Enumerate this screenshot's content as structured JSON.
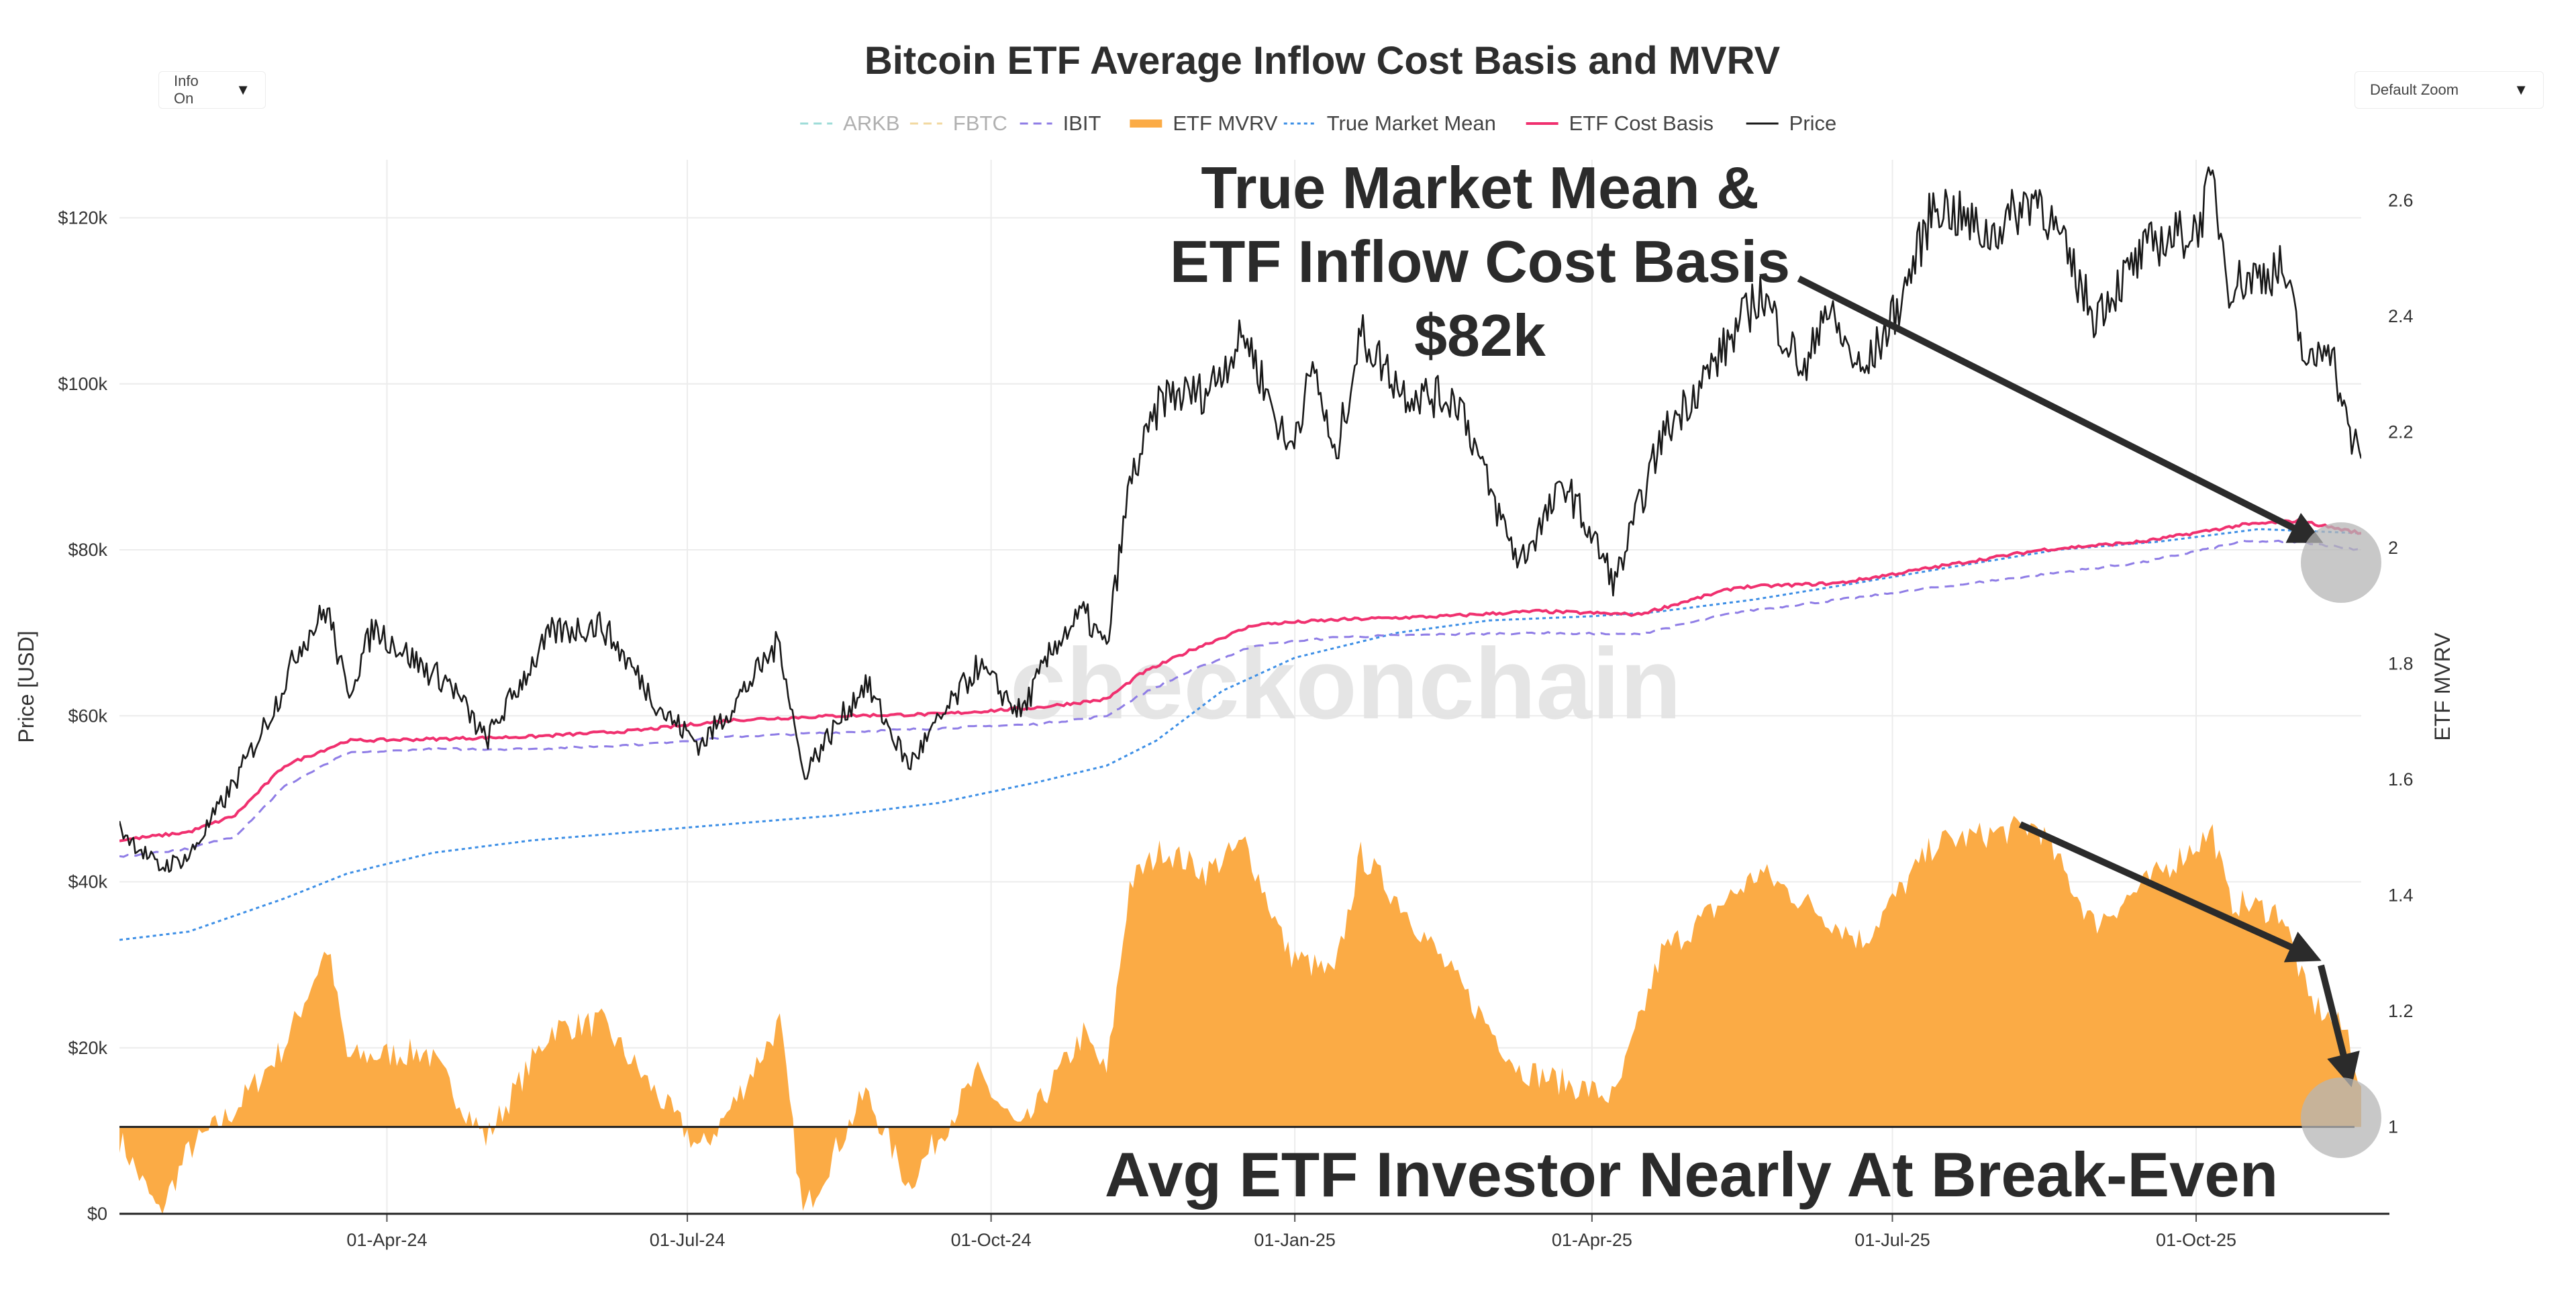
{
  "controls": {
    "info": "Info On",
    "zoom": "Default Zoom",
    "caret": "▼"
  },
  "colors": {
    "price": "#1a1a1a",
    "etf_cost_basis": "#f0306f",
    "true_market_mean": "#3d8fe6",
    "ibit": "#8f7de6",
    "fbtc": "#f2d9a0",
    "arkb": "#9edcd8",
    "mvrv_fill": "#fbab45",
    "grid": "#ececec",
    "arrow": "#2b2b2b",
    "marker": "#b5b5b5"
  },
  "annotations": {
    "top_line1": "True Market Mean &",
    "top_line2": "ETF Inflow Cost Basis",
    "top_line3": "$82k",
    "bottom": "Avg ETF Investor Nearly At Break-Even",
    "watermark": "checkonchain"
  },
  "chart_data": {
    "type": "line",
    "title": "Bitcoin ETF Average Inflow Cost Basis and MVRV",
    "xlabel": "",
    "ylabel": "Price [USD]",
    "y2label": "ETF MVRV",
    "x_range": [
      "2024-01-11",
      "2025-11-20"
    ],
    "x_ticks": [
      "01-Apr-24",
      "01-Jul-24",
      "01-Oct-24",
      "01-Jan-25",
      "01-Apr-25",
      "01-Jul-25",
      "01-Oct-25"
    ],
    "ylim": [
      0,
      127000
    ],
    "y_ticks": [
      "$0",
      "$20k",
      "$40k",
      "$60k",
      "$80k",
      "$100k",
      "$120k"
    ],
    "y2lim": [
      0.85,
      2.67
    ],
    "y2_ticks": [
      "1",
      "1.2",
      "1.4",
      "1.6",
      "1.8",
      "2",
      "2.2",
      "2.4",
      "2.6"
    ],
    "legend": [
      "ARKB",
      "FBTC",
      "IBIT",
      "ETF MVRV",
      "True Market Mean",
      "ETF Cost Basis",
      "Price"
    ],
    "series": [
      {
        "name": "Price",
        "axis": "y",
        "x": [
          "2024-01-11",
          "2024-01-23",
          "2024-02-01",
          "2024-02-15",
          "2024-02-28",
          "2024-03-05",
          "2024-03-14",
          "2024-03-20",
          "2024-03-28",
          "2024-04-13",
          "2024-04-20",
          "2024-05-01",
          "2024-05-15",
          "2024-05-21",
          "2024-06-05",
          "2024-06-24",
          "2024-07-05",
          "2024-07-14",
          "2024-07-29",
          "2024-08-05",
          "2024-08-24",
          "2024-09-06",
          "2024-09-27",
          "2024-10-10",
          "2024-10-21",
          "2024-10-29",
          "2024-11-05",
          "2024-11-12",
          "2024-11-22",
          "2024-12-05",
          "2024-12-17",
          "2024-12-30",
          "2025-01-07",
          "2025-01-13",
          "2025-01-21",
          "2025-02-03",
          "2025-02-20",
          "2025-03-02",
          "2025-03-10",
          "2025-03-24",
          "2025-04-08",
          "2025-04-22",
          "2025-05-09",
          "2025-05-22",
          "2025-06-05",
          "2025-06-10",
          "2025-06-22",
          "2025-07-03",
          "2025-07-14",
          "2025-07-30",
          "2025-08-14",
          "2025-08-31",
          "2025-09-18",
          "2025-10-01",
          "2025-10-06",
          "2025-10-11",
          "2025-10-27",
          "2025-11-04",
          "2025-11-10",
          "2025-11-16",
          "2025-11-20"
        ],
        "values": [
          46500,
          41700,
          43000,
          52000,
          62000,
          68000,
          73000,
          62500,
          70700,
          65500,
          64000,
          57000,
          66300,
          70000,
          71000,
          60300,
          56500,
          60800,
          69000,
          53000,
          64000,
          54000,
          66000,
          60300,
          69000,
          72400,
          68000,
          88000,
          98500,
          99000,
          106000,
          92000,
          102000,
          90500,
          106000,
          99000,
          98000,
          86000,
          78500,
          88000,
          76000,
          93500,
          103000,
          111000,
          101000,
          109600,
          101000,
          109500,
          122000,
          117800,
          123000,
          108300,
          117000,
          118500,
          124500,
          112000,
          114000,
          101500,
          106000,
          94300,
          91000
        ]
      },
      {
        "name": "ETF Cost Basis",
        "axis": "y",
        "x": [
          "2024-01-11",
          "2024-02-01",
          "2024-02-15",
          "2024-03-01",
          "2024-03-20",
          "2024-04-15",
          "2024-05-15",
          "2024-06-15",
          "2024-07-15",
          "2024-08-15",
          "2024-09-15",
          "2024-10-15",
          "2024-11-05",
          "2024-11-15",
          "2024-12-01",
          "2024-12-20",
          "2025-01-15",
          "2025-02-15",
          "2025-03-15",
          "2025-04-15",
          "2025-05-15",
          "2025-06-15",
          "2025-07-15",
          "2025-08-15",
          "2025-09-15",
          "2025-10-15",
          "2025-11-01",
          "2025-11-20"
        ],
        "values": [
          45000,
          46000,
          48000,
          54000,
          57000,
          57200,
          57500,
          58200,
          59500,
          60000,
          60200,
          61000,
          62000,
          65000,
          68000,
          71000,
          71600,
          72000,
          72600,
          72200,
          75500,
          76000,
          78000,
          80000,
          81000,
          83000,
          83500,
          82000
        ]
      },
      {
        "name": "IBIT",
        "axis": "y",
        "x": [
          "2024-01-11",
          "2024-02-01",
          "2024-02-15",
          "2024-03-01",
          "2024-03-20",
          "2024-04-15",
          "2024-05-15",
          "2024-06-15",
          "2024-07-15",
          "2024-08-15",
          "2024-09-15",
          "2024-10-15",
          "2024-11-05",
          "2024-11-15",
          "2024-12-01",
          "2024-12-20",
          "2025-01-15",
          "2025-02-15",
          "2025-03-15",
          "2025-04-15",
          "2025-05-15",
          "2025-06-15",
          "2025-07-15",
          "2025-08-15",
          "2025-09-15",
          "2025-10-15",
          "2025-11-01",
          "2025-11-20"
        ],
        "values": [
          43000,
          44000,
          45500,
          51500,
          55500,
          56000,
          56000,
          56500,
          57500,
          58000,
          58500,
          59000,
          60000,
          62500,
          65500,
          68500,
          69500,
          69800,
          70000,
          69800,
          72500,
          74000,
          75500,
          77000,
          78500,
          81000,
          81000,
          80000
        ]
      },
      {
        "name": "True Market Mean",
        "axis": "y",
        "x": [
          "2024-01-11",
          "2024-02-01",
          "2024-03-01",
          "2024-03-20",
          "2024-04-15",
          "2024-05-15",
          "2024-06-15",
          "2024-07-15",
          "2024-08-15",
          "2024-09-15",
          "2024-10-15",
          "2024-11-05",
          "2024-11-20",
          "2024-12-10",
          "2025-01-01",
          "2025-02-01",
          "2025-03-01",
          "2025-04-01",
          "2025-04-20",
          "2025-05-20",
          "2025-06-20",
          "2025-07-20",
          "2025-08-20",
          "2025-09-20",
          "2025-10-20",
          "2025-11-20"
        ],
        "values": [
          33000,
          34000,
          38000,
          41000,
          43500,
          45000,
          46000,
          47000,
          48000,
          49500,
          52000,
          54000,
          57000,
          63000,
          67000,
          70000,
          71500,
          72000,
          72500,
          74000,
          76000,
          78000,
          80000,
          81000,
          82500,
          82000
        ]
      },
      {
        "name": "ETF MVRV",
        "axis": "y2",
        "x": [
          "2024-01-11",
          "2024-01-23",
          "2024-02-01",
          "2024-02-15",
          "2024-03-01",
          "2024-03-14",
          "2024-03-20",
          "2024-04-13",
          "2024-05-01",
          "2024-05-21",
          "2024-06-05",
          "2024-06-24",
          "2024-07-05",
          "2024-07-14",
          "2024-07-29",
          "2024-08-05",
          "2024-08-24",
          "2024-09-06",
          "2024-09-27",
          "2024-10-10",
          "2024-10-29",
          "2024-11-05",
          "2024-11-12",
          "2024-11-22",
          "2024-12-05",
          "2024-12-17",
          "2024-12-30",
          "2025-01-13",
          "2025-01-21",
          "2025-02-03",
          "2025-03-10",
          "2025-04-08",
          "2025-04-22",
          "2025-05-22",
          "2025-06-22",
          "2025-07-14",
          "2025-08-14",
          "2025-08-31",
          "2025-09-18",
          "2025-10-06",
          "2025-10-11",
          "2025-10-27",
          "2025-11-04",
          "2025-11-16",
          "2025-11-20"
        ],
        "values": [
          0.98,
          0.85,
          0.96,
          1.03,
          1.14,
          1.31,
          1.12,
          1.13,
          0.98,
          1.17,
          1.18,
          1.04,
          0.96,
          1.03,
          1.18,
          0.85,
          1.06,
          0.9,
          1.09,
          0.99,
          1.16,
          1.09,
          1.42,
          1.48,
          1.44,
          1.49,
          1.3,
          1.26,
          1.47,
          1.38,
          1.1,
          1.05,
          1.3,
          1.44,
          1.32,
          1.49,
          1.52,
          1.35,
          1.43,
          1.51,
          1.39,
          1.37,
          1.22,
          1.16,
          1.07
        ]
      }
    ]
  }
}
